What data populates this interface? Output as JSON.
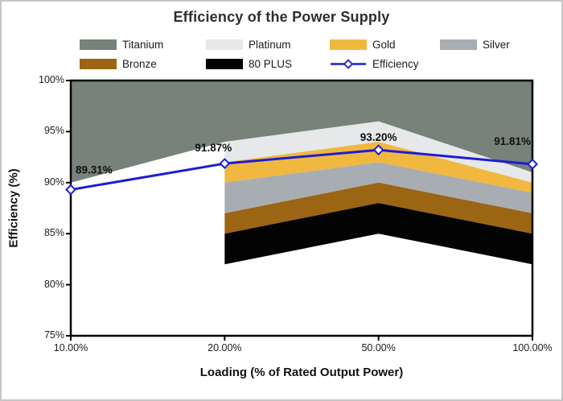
{
  "window": {
    "background": "#ffffff",
    "frame_border_color": "#c6c6c6"
  },
  "chart_data": {
    "type": "area+line",
    "title": "Efficiency of the Power Supply",
    "x_axis": {
      "label": "Loading (% of Rated Output Power)",
      "tick_labels": [
        "10.00%",
        "20.00%",
        "50.00%",
        "100.00%"
      ],
      "load_percent": [
        10,
        20,
        50,
        100
      ]
    },
    "y_axis": {
      "label": "Efficiency (%)",
      "min": 75,
      "max": 100,
      "step": 5,
      "tick_labels": [
        "100%",
        "95%",
        "90%",
        "85%",
        "80%",
        "75%"
      ]
    },
    "grid": "off",
    "legend_position": "top",
    "bands": [
      {
        "name": "Titanium",
        "color": "#76827a",
        "thresholds": [
          90,
          94,
          96,
          91
        ]
      },
      {
        "name": "Platinum",
        "color": "#e7e8e9",
        "thresholds": [
          null,
          92,
          94,
          90
        ]
      },
      {
        "name": "Gold",
        "color": "#f1b840",
        "thresholds": [
          null,
          90,
          92,
          89
        ]
      },
      {
        "name": "Silver",
        "color": "#a8adb1",
        "thresholds": [
          null,
          87,
          90,
          87
        ]
      },
      {
        "name": "Bronze",
        "color": "#9b6513",
        "thresholds": [
          null,
          85,
          88,
          85
        ]
      },
      {
        "name": "80 PLUS",
        "color": "#030303",
        "thresholds": [
          null,
          82,
          85,
          82
        ]
      }
    ],
    "line": {
      "name": "Efficiency",
      "color": "#1d1dd3",
      "marker": "diamond",
      "marker_fill": "#ffffff",
      "values": [
        89.31,
        91.87,
        93.2,
        91.81
      ],
      "labels": [
        "89.31%",
        "91.87%",
        "93.20%",
        "91.81%"
      ]
    },
    "plot_border_color": "#000000"
  }
}
